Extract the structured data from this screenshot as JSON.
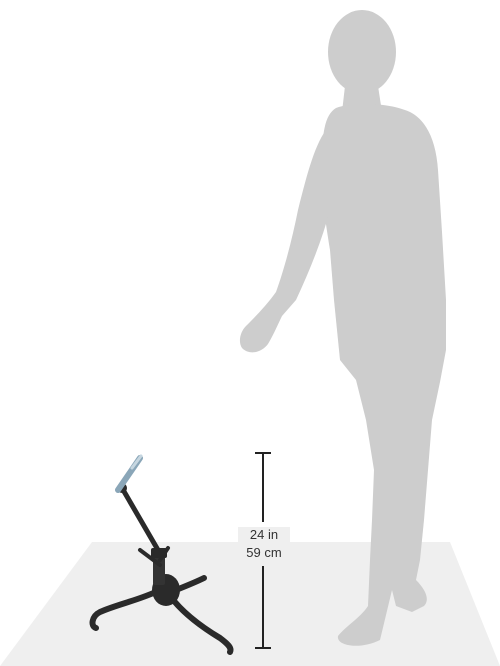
{
  "dimension": {
    "height_in": "24 in",
    "height_cm": "59 cm"
  },
  "colors": {
    "background": "#ffffff",
    "floor": "#efefef",
    "silhouette": "#cdcdcd",
    "stand": "#2a2a2a",
    "stand_accent": "#8aa6b8",
    "measure_line": "#222222"
  },
  "subjects": {
    "person": "human-silhouette",
    "product": "saxophone-stand"
  }
}
